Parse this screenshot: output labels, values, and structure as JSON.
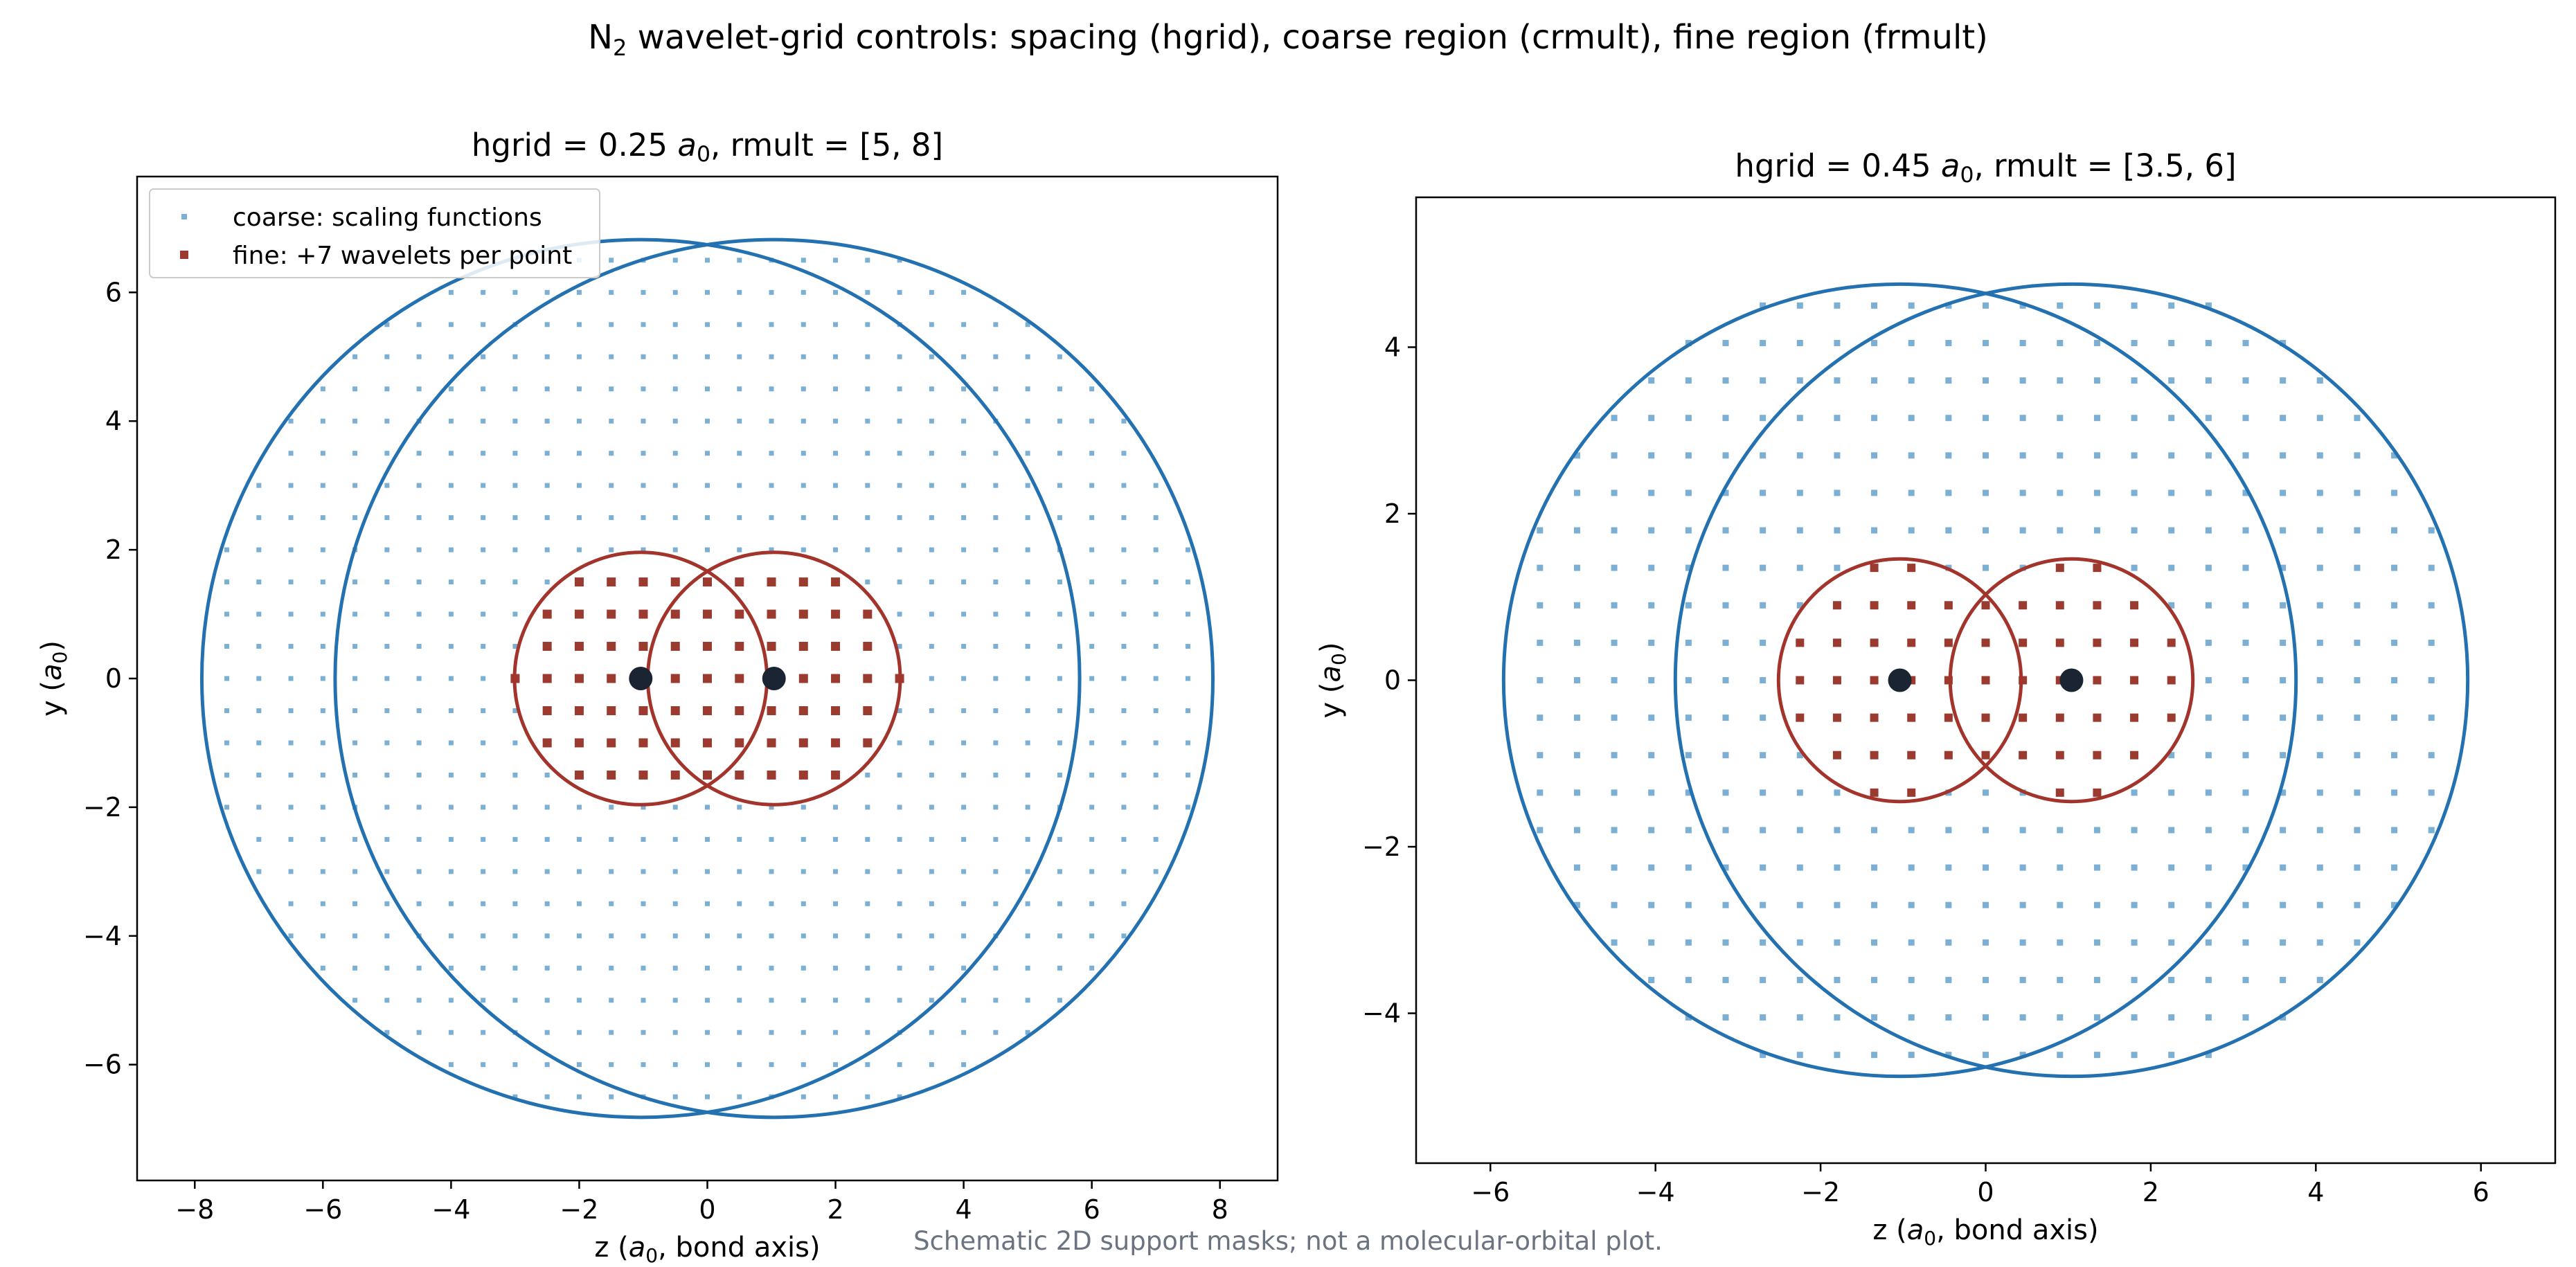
{
  "suptitle": {
    "prefix": "N",
    "sub": "2",
    "rest": " wavelet-grid controls: spacing (hgrid), coarse region (crmult), fine region (frmult)"
  },
  "footnote": "Schematic 2D support masks; not a molecular-orbital plot.",
  "colors": {
    "coarse_marker": "#7bafd4",
    "coarse_circle": "#2371b0",
    "fine_marker": "#9b3a2e",
    "fine_circle": "#a3342c",
    "atom": "#1b2433"
  },
  "chart_data": [
    {
      "type": "scatter",
      "title": {
        "pre": "hgrid = 0.25 ",
        "a": "a",
        "sub": "0",
        "post": ", rmult = [5, 8]"
      },
      "xlabel": {
        "pre": "z (",
        "a": "a",
        "sub": "0",
        "post": ", bond axis)"
      },
      "ylabel": {
        "pre": "y (",
        "a": "a",
        "sub": "0",
        "post": ")"
      },
      "xlim": [
        -8.9,
        8.9
      ],
      "ylim": [
        -7.8,
        7.8
      ],
      "xticks": [
        -8,
        -6,
        -4,
        -2,
        0,
        2,
        4,
        6,
        8
      ],
      "yticks": [
        -6,
        -4,
        -2,
        0,
        2,
        4,
        6
      ],
      "hgrid": 0.25,
      "marker_stride": 2,
      "atoms_z": [
        -1.04,
        1.04
      ],
      "coarse_radius": 6.85,
      "fine_radius": 1.97,
      "legend": {
        "show": true,
        "loc": "upper-left",
        "entries": [
          "coarse: scaling functions",
          "fine: +7 wavelets per point"
        ]
      }
    },
    {
      "type": "scatter",
      "title": {
        "pre": "hgrid = 0.45 ",
        "a": "a",
        "sub": "0",
        "post": ", rmult = [3.5, 6]"
      },
      "xlabel": {
        "pre": "z (",
        "a": "a",
        "sub": "0",
        "post": ", bond axis)"
      },
      "ylabel": {
        "pre": "y (",
        "a": "a",
        "sub": "0",
        "post": ")"
      },
      "xlim": [
        -6.9,
        6.9
      ],
      "ylim": [
        -5.8,
        5.8
      ],
      "xticks": [
        -6,
        -4,
        -2,
        0,
        2,
        4,
        6
      ],
      "yticks": [
        -4,
        -2,
        0,
        2,
        4
      ],
      "hgrid": 0.45,
      "marker_stride": 1,
      "atoms_z": [
        -1.04,
        1.04
      ],
      "coarse_radius": 4.8,
      "fine_radius": 1.47,
      "legend": {
        "show": false
      }
    }
  ]
}
